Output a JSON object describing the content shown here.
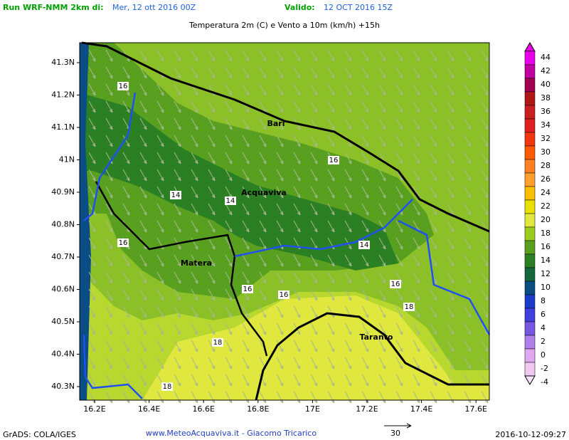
{
  "header": {
    "run_label": "Run WRF-NMM 2km di:",
    "run_date": "Mer, 12 ott 2016 00Z",
    "valid_label": "Valido:",
    "valid_date": "12 OCT 2016 15Z",
    "title": "Temperatura 2m (C) e Vento a 10m (km/h) +15h"
  },
  "map": {
    "lon_ticks": [
      {
        "value": 16.2,
        "label": "16.2E"
      },
      {
        "value": 16.4,
        "label": "16.4E"
      },
      {
        "value": 16.6,
        "label": "16.6E"
      },
      {
        "value": 16.8,
        "label": "16.8E"
      },
      {
        "value": 17,
        "label": "17E"
      },
      {
        "value": 17.2,
        "label": "17.2E"
      },
      {
        "value": 17.4,
        "label": "17.4E"
      },
      {
        "value": 17.6,
        "label": "17.6E"
      }
    ],
    "lat_ticks": [
      {
        "value": 41.3,
        "label": "41.3N"
      },
      {
        "value": 41.2,
        "label": "41.2N"
      },
      {
        "value": 41.1,
        "label": "41.1N"
      },
      {
        "value": 41,
        "label": "41N"
      },
      {
        "value": 40.9,
        "label": "40.9N"
      },
      {
        "value": 40.8,
        "label": "40.8N"
      },
      {
        "value": 40.7,
        "label": "40.7N"
      },
      {
        "value": 40.6,
        "label": "40.6N"
      },
      {
        "value": 40.5,
        "label": "40.5N"
      },
      {
        "value": 40.4,
        "label": "40.4N"
      },
      {
        "value": 40.3,
        "label": "40.3N"
      }
    ],
    "cities": [
      "Bari",
      "Acquaviva",
      "Matera",
      "Taranto"
    ],
    "contour_labels": [
      "16",
      "16",
      "14",
      "14",
      "16",
      "14",
      "16",
      "16",
      "16",
      "18",
      "18",
      "18"
    ]
  },
  "colorbar": [
    {
      "label": "44",
      "color": "#e800e8"
    },
    {
      "label": "42",
      "color": "#c000a0"
    },
    {
      "label": "40",
      "color": "#a00050"
    },
    {
      "label": "38",
      "color": "#b01818"
    },
    {
      "label": "36",
      "color": "#c82020"
    },
    {
      "label": "34",
      "color": "#e02020"
    },
    {
      "label": "32",
      "color": "#f03810"
    },
    {
      "label": "30",
      "color": "#ff5a00"
    },
    {
      "label": "28",
      "color": "#ff8020"
    },
    {
      "label": "26",
      "color": "#ffa030"
    },
    {
      "label": "24",
      "color": "#f8c000"
    },
    {
      "label": "22",
      "color": "#e8e000"
    },
    {
      "label": "20",
      "color": "#e0e840"
    },
    {
      "label": "18",
      "color": "#9ccc20"
    },
    {
      "label": "16",
      "color": "#5aa020"
    },
    {
      "label": "14",
      "color": "#2c8024"
    },
    {
      "label": "12",
      "color": "#14683c"
    },
    {
      "label": "10",
      "color": "#0a4c84"
    },
    {
      "label": "8",
      "color": "#1e3cc8"
    },
    {
      "label": "6",
      "color": "#4040dc"
    },
    {
      "label": "4",
      "color": "#7858e0"
    },
    {
      "label": "2",
      "color": "#b080e8"
    },
    {
      "label": "0",
      "color": "#e0a8f0"
    },
    {
      "label": "-2",
      "color": "#f0c8f0"
    },
    {
      "label": "-4",
      "color": "#fae4fa"
    }
  ],
  "footer": {
    "left": "GrADS: COLA/IGES",
    "center": "www.MeteoAcquaviva.it - Giacomo Tricarico",
    "arrow_label": "30",
    "right": "2016-10-12-09:27"
  }
}
